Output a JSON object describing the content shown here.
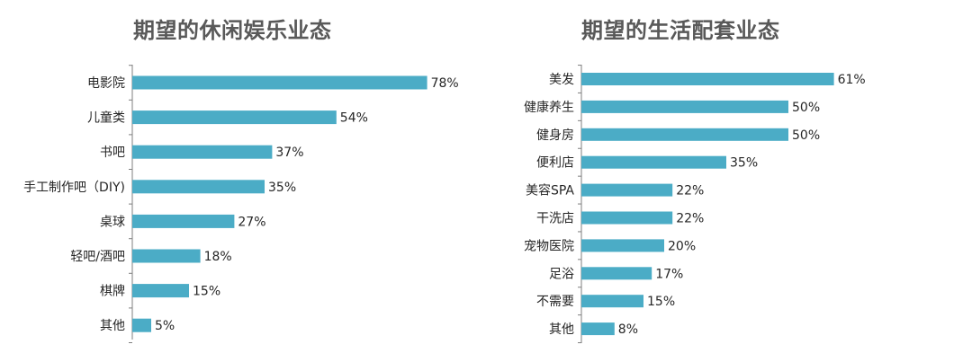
{
  "colors": {
    "bar": "#4bacc6",
    "title": "#595959",
    "text": "#262626",
    "axis": "#7f7f7f"
  },
  "chart_data": [
    {
      "type": "bar",
      "orientation": "horizontal",
      "title": "期望的休闲娱乐业态",
      "categories": [
        "电影院",
        "儿童类",
        "书吧",
        "手工制作吧（DIY)",
        "桌球",
        "轻吧/酒吧",
        "棋牌",
        "其他"
      ],
      "values": [
        78,
        54,
        37,
        35,
        27,
        18,
        15,
        5
      ],
      "value_labels": [
        "78%",
        "54%",
        "37%",
        "35%",
        "27%",
        "18%",
        "15%",
        "5%"
      ],
      "unit": "%",
      "xlim": [
        0,
        100
      ],
      "grid": false,
      "legend": "none"
    },
    {
      "type": "bar",
      "orientation": "horizontal",
      "title": "期望的生活配套业态",
      "categories": [
        "美发",
        "健康养生",
        "健身房",
        "便利店",
        "美容SPA",
        "干洗店",
        "宠物医院",
        "足浴",
        "不需要",
        "其他"
      ],
      "values": [
        61,
        50,
        50,
        35,
        22,
        22,
        20,
        17,
        15,
        8
      ],
      "value_labels": [
        "61%",
        "50%",
        "50%",
        "35%",
        "22%",
        "22%",
        "20%",
        "17%",
        "15%",
        "8%"
      ],
      "unit": "%",
      "xlim": [
        0,
        100
      ],
      "grid": false,
      "legend": "none"
    }
  ]
}
